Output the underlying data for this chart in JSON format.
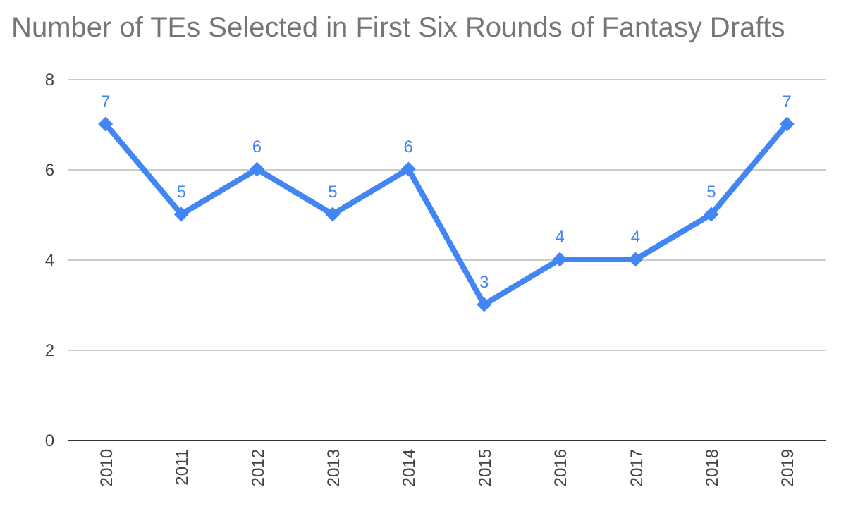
{
  "chart_data": {
    "type": "line",
    "title": "Number of TEs Selected in First Six Rounds of Fantasy Drafts",
    "categories": [
      "2010",
      "2011",
      "2012",
      "2013",
      "2014",
      "2015",
      "2016",
      "2017",
      "2018",
      "2019"
    ],
    "series": [
      {
        "color": "#4285f4",
        "values": [
          7,
          5,
          6,
          5,
          6,
          3,
          4,
          4,
          5,
          7
        ]
      }
    ],
    "ylim": [
      0,
      8
    ],
    "yticks": [
      0,
      2,
      4,
      6,
      8
    ],
    "grid": "y",
    "marker": "diamond",
    "line_style": "solid",
    "data_labels": true,
    "legend": false
  }
}
